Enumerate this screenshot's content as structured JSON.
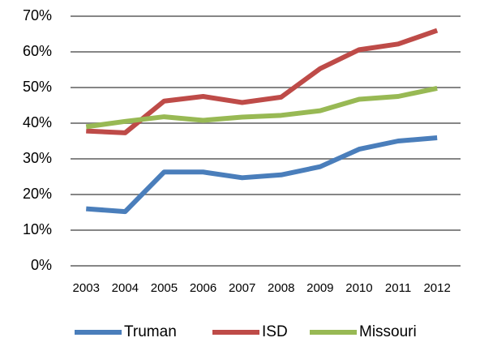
{
  "chart_data": {
    "type": "line",
    "categories": [
      "2003",
      "2004",
      "2005",
      "2006",
      "2007",
      "2008",
      "2009",
      "2010",
      "2011",
      "2012"
    ],
    "series": [
      {
        "name": "Truman",
        "color": "#4a7ebb",
        "values": [
          16,
          15.2,
          26.3,
          26.3,
          24.7,
          25.5,
          27.8,
          32.7,
          35,
          35.9
        ]
      },
      {
        "name": "ISD",
        "color": "#be4b48",
        "values": [
          37.8,
          37.3,
          46.2,
          47.5,
          45.8,
          47.3,
          55.3,
          60.6,
          62.2,
          66
        ]
      },
      {
        "name": "Missouri",
        "color": "#98b954",
        "values": [
          39,
          40.5,
          41.8,
          40.8,
          41.7,
          42.2,
          43.5,
          46.7,
          47.5,
          49.8
        ]
      }
    ],
    "ylim": [
      0,
      70
    ],
    "yticks": [
      {
        "value": 0,
        "label": "0%"
      },
      {
        "value": 10,
        "label": "10%"
      },
      {
        "value": 20,
        "label": "20%"
      },
      {
        "value": 30,
        "label": "30%"
      },
      {
        "value": 40,
        "label": "40%"
      },
      {
        "value": 50,
        "label": "50%"
      },
      {
        "value": 60,
        "label": "60%"
      },
      {
        "value": 70,
        "label": "70%"
      }
    ],
    "grid": true,
    "legend": "bottom"
  }
}
